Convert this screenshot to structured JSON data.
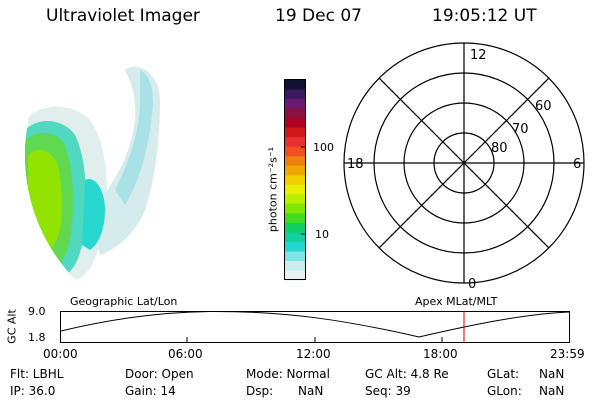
{
  "header": {
    "instrument": "Ultraviolet Imager",
    "date": "19 Dec 07",
    "time": "19:05:12 UT"
  },
  "colorbar": {
    "unit_label": "photon cm⁻²s⁻¹",
    "ticks": [
      "100",
      "10"
    ],
    "colors": [
      "#111133",
      "#3a1a5a",
      "#6a1a70",
      "#8a1040",
      "#b00020",
      "#d01818",
      "#e83030",
      "#f05020",
      "#f08010",
      "#f0a800",
      "#f0d000",
      "#e8f000",
      "#b8f000",
      "#80e800",
      "#40dc20",
      "#10d060",
      "#10d0a0",
      "#20d8d0",
      "#80e4e4",
      "#c8eeee",
      "#e6f2f2"
    ]
  },
  "polar_plot": {
    "mlt_labels": {
      "top": "12",
      "left": "18",
      "right": "6",
      "bottom": "0"
    },
    "lat_labels": [
      "60",
      "70",
      "80"
    ]
  },
  "timeline": {
    "left_caption": "Geographic Lat/Lon",
    "right_caption": "Apex MLat/MLT",
    "axis_title": "GC Alt",
    "y_ticks": [
      "9.0",
      "1.8"
    ],
    "x_ticks": [
      "00:00",
      "06:00",
      "12:00",
      "18:00",
      "23:59"
    ],
    "current_time_color": "#cc0000"
  },
  "footer": {
    "flt": "Flt: LBHL",
    "ip": "IP: 36.0",
    "door": "Door: Open",
    "gain": "Gain: 14",
    "mode": "Mode: Normal",
    "dsp": "Dsp:",
    "dsp_val": "NaN",
    "gcalt": "GC Alt: 4.8 Re",
    "seq": "Seq: 39",
    "glat": "GLat:",
    "glat_val": "NaN",
    "glon": "GLon:",
    "glon_val": "NaN"
  }
}
